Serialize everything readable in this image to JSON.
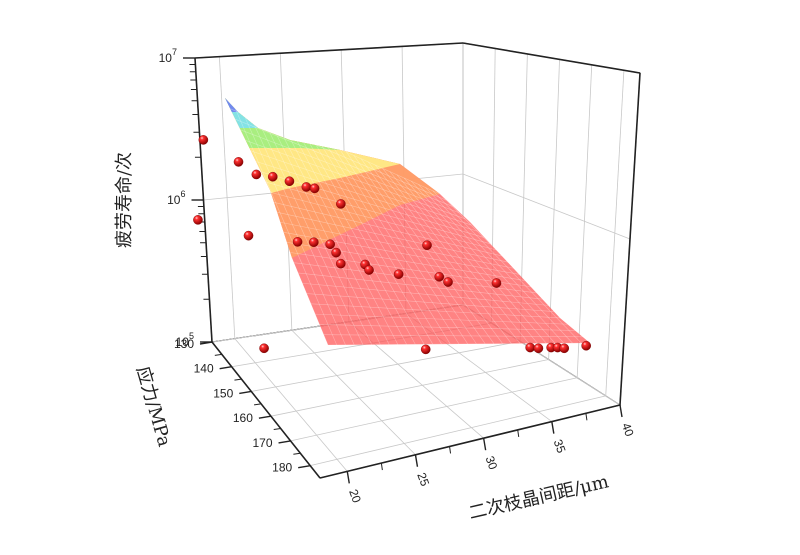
{
  "chart_data": {
    "type": "scatter",
    "subtype": "3d-scatter-with-fitted-surface",
    "title": "",
    "xlabel": "二次枝晶间距/μm",
    "ylabel": "应力/MPa",
    "zlabel": "疲劳寿命/次",
    "x_ticks": [
      "20",
      "25",
      "30",
      "35",
      "40"
    ],
    "y_ticks": [
      "130",
      "140",
      "150",
      "160",
      "170",
      "180"
    ],
    "z_ticks": [
      {
        "base": "10",
        "exp": "5"
      },
      {
        "base": "10",
        "exp": "6"
      },
      {
        "base": "10",
        "exp": "7"
      }
    ],
    "xlim": [
      18,
      40
    ],
    "ylim": [
      130,
      185
    ],
    "zlim": [
      100000,
      10000000
    ],
    "z_scale": "log",
    "grid": true,
    "legend": "none",
    "marker_color": "#e00000",
    "surface_colormap": [
      "#ff5a5a",
      "#ffa366",
      "#ffee88",
      "#a0ee80",
      "#80e0f0",
      "#7080f0"
    ],
    "points": [
      {
        "x": 18,
        "y": 130,
        "z": 4400000
      },
      {
        "x": 20,
        "y": 132,
        "z": 2900000
      },
      {
        "x": 21,
        "y": 134,
        "z": 2300000
      },
      {
        "x": 22,
        "y": 134,
        "z": 2200000
      },
      {
        "x": 23,
        "y": 133,
        "z": 2000000
      },
      {
        "x": 24,
        "y": 134,
        "z": 1800000
      },
      {
        "x": 24.5,
        "y": 134,
        "z": 1750000
      },
      {
        "x": 26,
        "y": 135,
        "z": 1300000
      },
      {
        "x": 17,
        "y": 142,
        "z": 1000000
      },
      {
        "x": 20,
        "y": 145,
        "z": 750000
      },
      {
        "x": 23,
        "y": 142,
        "z": 650000
      },
      {
        "x": 24,
        "y": 143,
        "z": 650000
      },
      {
        "x": 25,
        "y": 142,
        "z": 620000
      },
      {
        "x": 25.3,
        "y": 143,
        "z": 530000
      },
      {
        "x": 25.5,
        "y": 144,
        "z": 430000
      },
      {
        "x": 27,
        "y": 143,
        "z": 420000
      },
      {
        "x": 27.2,
        "y": 144,
        "z": 380000
      },
      {
        "x": 29,
        "y": 144,
        "z": 350000
      },
      {
        "x": 31,
        "y": 140,
        "z": 600000
      },
      {
        "x": 31.5,
        "y": 143,
        "z": 330000
      },
      {
        "x": 32,
        "y": 144,
        "z": 300000
      },
      {
        "x": 35,
        "y": 142,
        "z": 290000
      },
      {
        "x": 20,
        "y": 172,
        "z": 100000
      },
      {
        "x": 30,
        "y": 175,
        "z": 100000
      },
      {
        "x": 36.5,
        "y": 170,
        "z": 100000
      },
      {
        "x": 37,
        "y": 172,
        "z": 100000
      },
      {
        "x": 37.8,
        "y": 170,
        "z": 100000
      },
      {
        "x": 38.2,
        "y": 170,
        "z": 100000
      },
      {
        "x": 38.6,
        "y": 172,
        "z": 100000
      },
      {
        "x": 40,
        "y": 165,
        "z": 100000
      }
    ]
  }
}
